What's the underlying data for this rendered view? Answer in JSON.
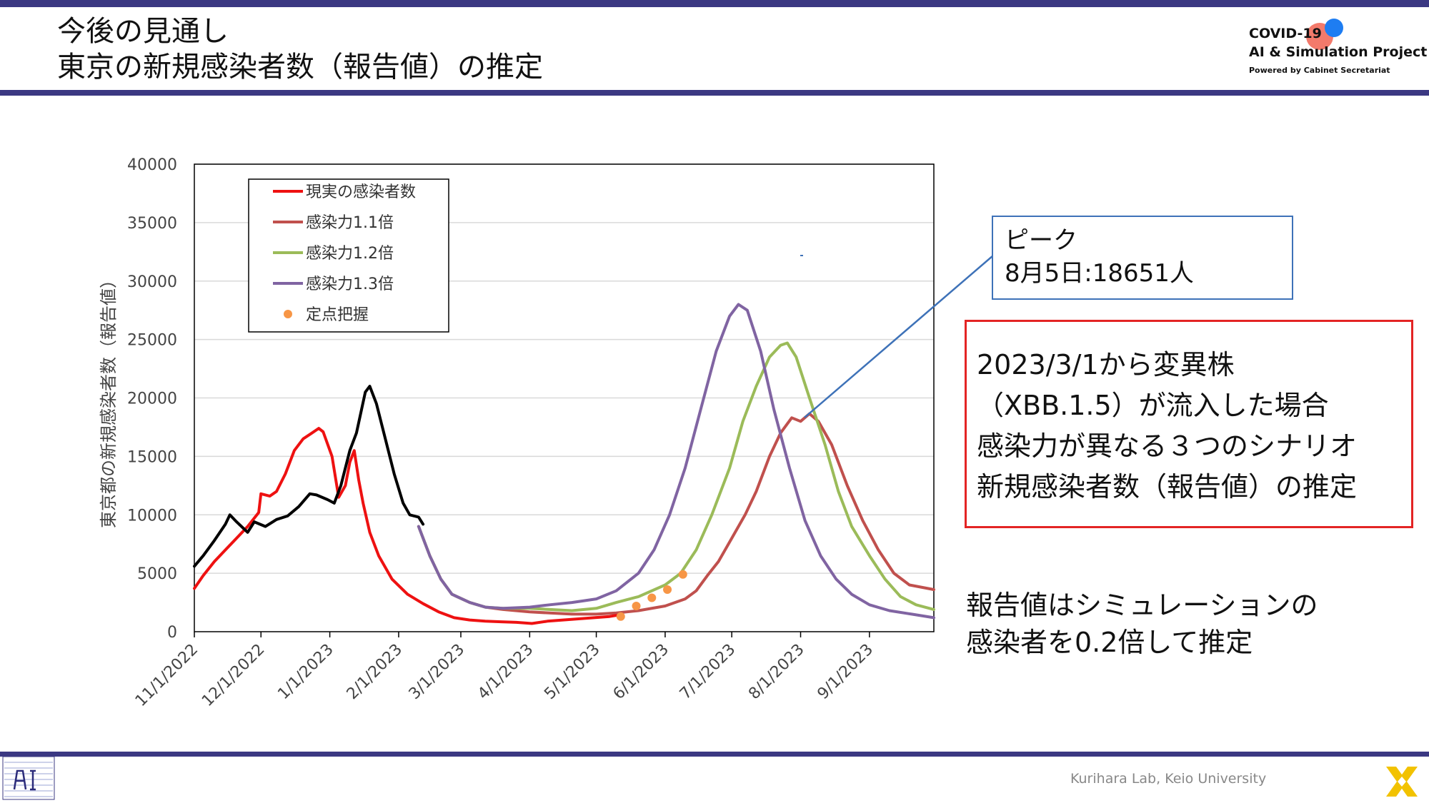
{
  "header": {
    "title_line1": "今後の見通し",
    "title_line2": "東京の新規感染者数（報告値）の推定"
  },
  "logo": {
    "line1": "COVID-19",
    "line2": "AI & Simulation Project",
    "line3": "Powered by Cabinet Secretariat"
  },
  "peak_annotation": {
    "line1": "ピーク",
    "line2": "8月5日:18651人"
  },
  "scenario_box": {
    "line1": "2023/3/1から変異株",
    "line2": "（XBB.1.5）が流入した場合",
    "line3": "感染力が異なる３つのシナリオ",
    "line4": "新規感染者数（報告値）の推定"
  },
  "note": {
    "line1": "報告値はシミュレーションの",
    "line2": "感染者を0.2倍して推定"
  },
  "footer": {
    "text": "Kurihara Lab, Keio University"
  },
  "colors": {
    "accent_bar": "#3b3882",
    "actual_before": "#000000",
    "actual": "#ee1111",
    "x1_1": "#c0504d",
    "x1_2": "#9bbb59",
    "x1_3": "#8064a2",
    "sentinel": "#f79646",
    "peak_box_border": "#3e72b8",
    "scenario_box_border": "#e32424"
  },
  "chart_data": {
    "type": "line",
    "title": "",
    "xlabel": "",
    "ylabel": "東京都の新規感染者数（報告値）",
    "ylim": [
      0,
      40000
    ],
    "yticks": [
      0,
      5000,
      10000,
      15000,
      20000,
      25000,
      30000,
      35000,
      40000
    ],
    "xlim": [
      "2022-11-01",
      "2023-09-30"
    ],
    "xticks": [
      "2022-11-01",
      "2022-12-01",
      "2023-01-01",
      "2023-02-01",
      "2023-03-01",
      "2023-04-01",
      "2023-05-01",
      "2023-06-01",
      "2023-07-01",
      "2023-08-01",
      "2023-09-01"
    ],
    "xtick_labels": [
      "11/1/2022",
      "12/1/2022",
      "1/1/2023",
      "2/1/2023",
      "3/1/2023",
      "4/1/2023",
      "5/1/2023",
      "6/1/2023",
      "7/1/2023",
      "8/1/2023",
      "9/1/2023"
    ],
    "grid": "horizontal",
    "legend_position": "top-left",
    "series": [
      {
        "name": "",
        "style": "line",
        "color_key": "actual_before",
        "points": [
          [
            "2022-11-01",
            5600
          ],
          [
            "2022-11-05",
            6500
          ],
          [
            "2022-11-10",
            7800
          ],
          [
            "2022-11-15",
            9200
          ],
          [
            "2022-11-17",
            10000
          ],
          [
            "2022-11-20",
            9400
          ],
          [
            "2022-11-25",
            8500
          ],
          [
            "2022-11-28",
            9400
          ],
          [
            "2022-12-03",
            9000
          ],
          [
            "2022-12-08",
            9600
          ],
          [
            "2022-12-13",
            9900
          ],
          [
            "2022-12-18",
            10700
          ],
          [
            "2022-12-23",
            11800
          ],
          [
            "2022-12-26",
            11700
          ],
          [
            "2022-12-31",
            11300
          ],
          [
            "2023-01-03",
            11000
          ],
          [
            "2023-01-06",
            12500
          ],
          [
            "2023-01-10",
            15500
          ],
          [
            "2023-01-13",
            17000
          ],
          [
            "2023-01-17",
            20500
          ],
          [
            "2023-01-19",
            21000
          ],
          [
            "2023-01-22",
            19500
          ],
          [
            "2023-01-26",
            16500
          ],
          [
            "2023-01-30",
            13500
          ],
          [
            "2023-02-03",
            11000
          ],
          [
            "2023-02-06",
            10000
          ],
          [
            "2023-02-10",
            9800
          ],
          [
            "2023-02-12",
            9200
          ]
        ]
      },
      {
        "name": "現実の感染者数",
        "style": "line",
        "color_key": "actual",
        "points": [
          [
            "2022-11-01",
            3700
          ],
          [
            "2022-11-05",
            4800
          ],
          [
            "2022-11-10",
            6000
          ],
          [
            "2022-11-15",
            7000
          ],
          [
            "2022-11-20",
            8000
          ],
          [
            "2022-11-25",
            9000
          ],
          [
            "2022-11-30",
            10200
          ],
          [
            "2022-12-01",
            11800
          ],
          [
            "2022-12-05",
            11600
          ],
          [
            "2022-12-08",
            12000
          ],
          [
            "2022-12-12",
            13500
          ],
          [
            "2022-12-16",
            15500
          ],
          [
            "2022-12-20",
            16500
          ],
          [
            "2022-12-24",
            17000
          ],
          [
            "2022-12-27",
            17400
          ],
          [
            "2022-12-29",
            17100
          ],
          [
            "2023-01-02",
            15000
          ],
          [
            "2023-01-05",
            11500
          ],
          [
            "2023-01-08",
            12500
          ],
          [
            "2023-01-10",
            14500
          ],
          [
            "2023-01-12",
            15500
          ],
          [
            "2023-01-14",
            13000
          ],
          [
            "2023-01-16",
            11000
          ],
          [
            "2023-01-19",
            8500
          ],
          [
            "2023-01-23",
            6500
          ],
          [
            "2023-01-29",
            4500
          ],
          [
            "2023-02-05",
            3200
          ],
          [
            "2023-02-12",
            2400
          ],
          [
            "2023-02-19",
            1700
          ],
          [
            "2023-02-26",
            1200
          ],
          [
            "2023-03-05",
            1000
          ],
          [
            "2023-03-12",
            900
          ],
          [
            "2023-03-19",
            850
          ],
          [
            "2023-03-26",
            800
          ],
          [
            "2023-04-02",
            700
          ],
          [
            "2023-04-09",
            900
          ],
          [
            "2023-04-16",
            1000
          ],
          [
            "2023-04-23",
            1100
          ],
          [
            "2023-04-30",
            1200
          ],
          [
            "2023-05-07",
            1300
          ],
          [
            "2023-05-10",
            1400
          ]
        ]
      },
      {
        "name": "感染力1.1倍",
        "style": "line",
        "color_key": "x1_1",
        "points": [
          [
            "2023-02-10",
            9000
          ],
          [
            "2023-02-15",
            6500
          ],
          [
            "2023-02-20",
            4500
          ],
          [
            "2023-02-25",
            3200
          ],
          [
            "2023-03-05",
            2500
          ],
          [
            "2023-03-12",
            2100
          ],
          [
            "2023-03-20",
            1900
          ],
          [
            "2023-04-01",
            1700
          ],
          [
            "2023-04-10",
            1600
          ],
          [
            "2023-04-20",
            1500
          ],
          [
            "2023-05-01",
            1500
          ],
          [
            "2023-05-10",
            1600
          ],
          [
            "2023-05-20",
            1800
          ],
          [
            "2023-06-01",
            2200
          ],
          [
            "2023-06-10",
            2800
          ],
          [
            "2023-06-15",
            3500
          ],
          [
            "2023-06-20",
            4800
          ],
          [
            "2023-06-25",
            6000
          ],
          [
            "2023-07-01",
            8000
          ],
          [
            "2023-07-07",
            10000
          ],
          [
            "2023-07-12",
            12000
          ],
          [
            "2023-07-18",
            15000
          ],
          [
            "2023-07-23",
            17000
          ],
          [
            "2023-07-28",
            18300
          ],
          [
            "2023-08-01",
            18000
          ],
          [
            "2023-08-05",
            18651
          ],
          [
            "2023-08-09",
            18000
          ],
          [
            "2023-08-15",
            16000
          ],
          [
            "2023-08-22",
            12500
          ],
          [
            "2023-08-29",
            9500
          ],
          [
            "2023-09-05",
            7000
          ],
          [
            "2023-09-12",
            5000
          ],
          [
            "2023-09-19",
            4000
          ],
          [
            "2023-09-30",
            3600
          ]
        ]
      },
      {
        "name": "感染力1.2倍",
        "style": "line",
        "color_key": "x1_2",
        "points": [
          [
            "2023-02-10",
            9000
          ],
          [
            "2023-02-15",
            6500
          ],
          [
            "2023-02-20",
            4500
          ],
          [
            "2023-02-25",
            3200
          ],
          [
            "2023-03-05",
            2500
          ],
          [
            "2023-03-12",
            2100
          ],
          [
            "2023-03-20",
            2000
          ],
          [
            "2023-04-01",
            2000
          ],
          [
            "2023-04-10",
            1900
          ],
          [
            "2023-04-20",
            1800
          ],
          [
            "2023-05-01",
            2000
          ],
          [
            "2023-05-10",
            2500
          ],
          [
            "2023-05-20",
            3000
          ],
          [
            "2023-06-01",
            4000
          ],
          [
            "2023-06-08",
            5000
          ],
          [
            "2023-06-15",
            7000
          ],
          [
            "2023-06-22",
            10000
          ],
          [
            "2023-06-30",
            14000
          ],
          [
            "2023-07-06",
            18000
          ],
          [
            "2023-07-12",
            21000
          ],
          [
            "2023-07-18",
            23500
          ],
          [
            "2023-07-23",
            24500
          ],
          [
            "2023-07-26",
            24700
          ],
          [
            "2023-07-30",
            23500
          ],
          [
            "2023-08-05",
            20000
          ],
          [
            "2023-08-12",
            16000
          ],
          [
            "2023-08-18",
            12000
          ],
          [
            "2023-08-24",
            9000
          ],
          [
            "2023-09-01",
            6500
          ],
          [
            "2023-09-08",
            4500
          ],
          [
            "2023-09-15",
            3000
          ],
          [
            "2023-09-22",
            2300
          ],
          [
            "2023-09-30",
            1900
          ]
        ]
      },
      {
        "name": "感染力1.3倍",
        "style": "line",
        "color_key": "x1_3",
        "points": [
          [
            "2023-02-10",
            9000
          ],
          [
            "2023-02-15",
            6500
          ],
          [
            "2023-02-20",
            4500
          ],
          [
            "2023-02-25",
            3200
          ],
          [
            "2023-03-05",
            2500
          ],
          [
            "2023-03-12",
            2100
          ],
          [
            "2023-03-20",
            2000
          ],
          [
            "2023-04-01",
            2100
          ],
          [
            "2023-04-10",
            2300
          ],
          [
            "2023-04-20",
            2500
          ],
          [
            "2023-05-01",
            2800
          ],
          [
            "2023-05-10",
            3500
          ],
          [
            "2023-05-20",
            5000
          ],
          [
            "2023-05-27",
            7000
          ],
          [
            "2023-06-03",
            10000
          ],
          [
            "2023-06-10",
            14000
          ],
          [
            "2023-06-17",
            19000
          ],
          [
            "2023-06-24",
            24000
          ],
          [
            "2023-06-30",
            27000
          ],
          [
            "2023-07-04",
            28000
          ],
          [
            "2023-07-08",
            27500
          ],
          [
            "2023-07-14",
            24000
          ],
          [
            "2023-07-20",
            19000
          ],
          [
            "2023-07-27",
            14000
          ],
          [
            "2023-08-03",
            9500
          ],
          [
            "2023-08-10",
            6500
          ],
          [
            "2023-08-17",
            4500
          ],
          [
            "2023-08-24",
            3200
          ],
          [
            "2023-09-01",
            2300
          ],
          [
            "2023-09-10",
            1800
          ],
          [
            "2023-09-20",
            1500
          ],
          [
            "2023-09-30",
            1200
          ]
        ]
      },
      {
        "name": "定点把握",
        "style": "scatter",
        "color_key": "sentinel",
        "points": [
          [
            "2023-05-12",
            1300
          ],
          [
            "2023-05-19",
            2200
          ],
          [
            "2023-05-26",
            2900
          ],
          [
            "2023-06-02",
            3600
          ],
          [
            "2023-06-09",
            4900
          ]
        ]
      }
    ],
    "y_tick_labels": [
      "0",
      "5000",
      "10000",
      "15000",
      "20000",
      "25000",
      "30000",
      "35000",
      "40000"
    ]
  }
}
